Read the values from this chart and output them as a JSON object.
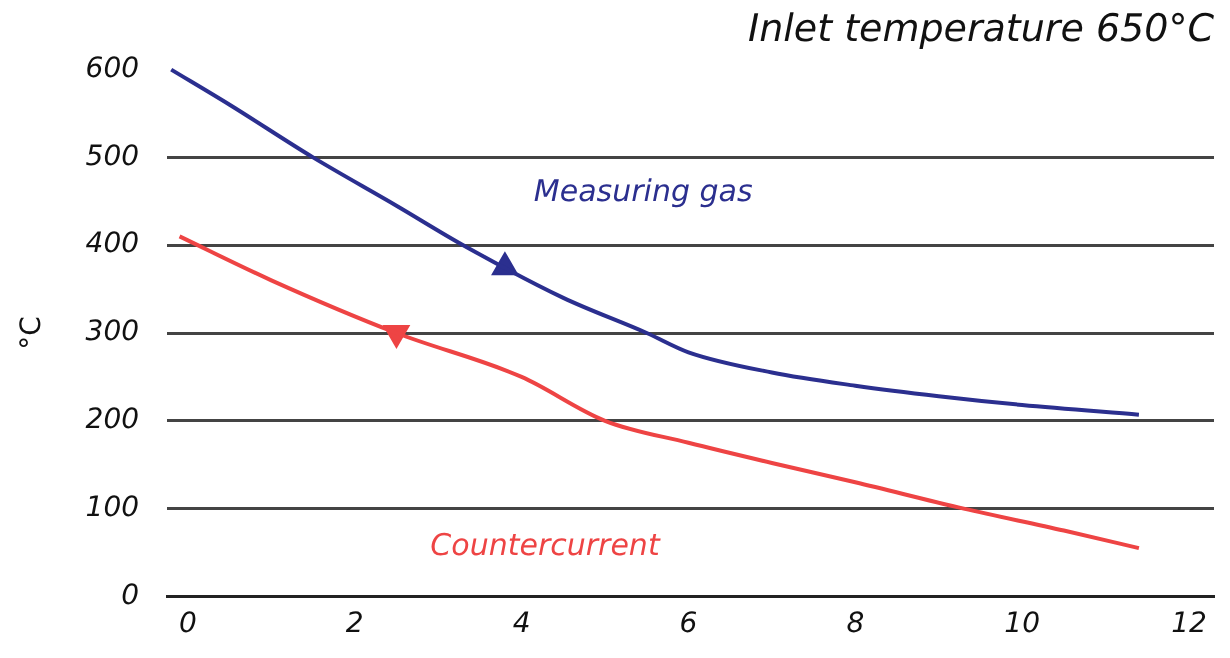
{
  "chart_data": {
    "type": "line",
    "title": "Inlet temperature 650°C",
    "ylabel": "°C",
    "xlim": [
      -0.25,
      12.3
    ],
    "xticks": [
      0,
      2,
      4,
      6,
      8,
      10,
      12
    ],
    "ylim": [
      0,
      600
    ],
    "yticks": [
      0,
      100,
      200,
      300,
      400,
      500,
      600
    ],
    "grid": "y",
    "legend": false,
    "line_style": "solid",
    "series": [
      {
        "name": "Measuring gas",
        "color": "#2b2f8f",
        "x": [
          -0.2,
          0.5,
          1.5,
          2.5,
          3.3,
          4.5,
          5.5,
          6,
          7,
          8,
          9,
          10,
          11.4
        ],
        "values": [
          600,
          560,
          500,
          445,
          400,
          340,
          300,
          278,
          255,
          240,
          228,
          218,
          207
        ]
      },
      {
        "name": "Countercurrent",
        "color": "#ee4444",
        "x": [
          -0.1,
          1,
          2.5,
          4,
          5,
          6,
          7,
          8,
          9.3,
          10.5,
          11.4
        ],
        "values": [
          410,
          360,
          300,
          250,
          200,
          175,
          152,
          130,
          100,
          75,
          55
        ]
      },
      {
        "type": "scatter",
        "marker": "triangle",
        "color": "#2b2f8f",
        "x": [
          3.8
        ],
        "values": [
          375
        ]
      },
      {
        "type": "scatter",
        "marker": "triangle",
        "color": "#ee4444",
        "x": [
          2.5
        ],
        "values": [
          300
        ]
      }
    ]
  }
}
